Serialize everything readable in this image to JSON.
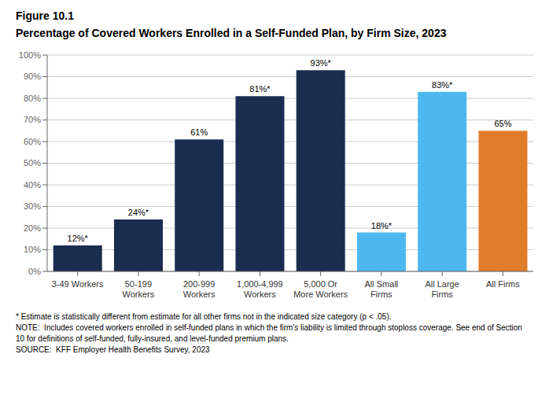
{
  "chart_data": {
    "type": "bar",
    "title": "Percentage of Covered Workers Enrolled in a Self-Funded Plan, by Firm Size, 2023",
    "annotations": [
      "Figure 10.1",
      "* Estimate is statistically different from estimate for all other firms not in the indicated size category (p < .05).",
      "NOTE:  Includes covered workers enrolled in self-funded plans in which the firm's liability is limited through stoploss coverage. See end of Section",
      "10 for definitions of self-funded, fully-insured, and level-funded premium plans.",
      "SOURCE:  KFF Employer Health Benefits Survey, 2023"
    ],
    "categories": [
      "3-49 Workers",
      "50-199\nWorkers",
      "200-999\nWorkers",
      "1,000-4,999\nWorkers",
      "5,000 Or\nMore Workers",
      "All Small\nFirms",
      "All Large\nFirms",
      "All Firms"
    ],
    "values": [
      12,
      24,
      61,
      81,
      93,
      18,
      83,
      65
    ],
    "value_labels": [
      "12%*",
      "24%*",
      "61%",
      "81%*",
      "93%*",
      "18%*",
      "83%*",
      "65%"
    ],
    "data_labels": true,
    "colors": [
      "#1b2d4f",
      "#1b2d4f",
      "#1b2d4f",
      "#1b2d4f",
      "#1b2d4f",
      "#4db8f0",
      "#4db8f0",
      "#e07b2a"
    ],
    "ylim": [
      0,
      100
    ],
    "yticks": [
      {
        "value": 0,
        "label": "0%"
      },
      {
        "value": 10,
        "label": "10%"
      },
      {
        "value": 20,
        "label": "20%"
      },
      {
        "value": 30,
        "label": "30%"
      },
      {
        "value": 40,
        "label": "40%"
      },
      {
        "value": 50,
        "label": "50%"
      },
      {
        "value": 60,
        "label": "60%"
      },
      {
        "value": 70,
        "label": "70%"
      },
      {
        "value": 80,
        "label": "80%"
      },
      {
        "value": 90,
        "label": "90%"
      },
      {
        "value": 100,
        "label": "100%"
      }
    ],
    "grid": true
  }
}
